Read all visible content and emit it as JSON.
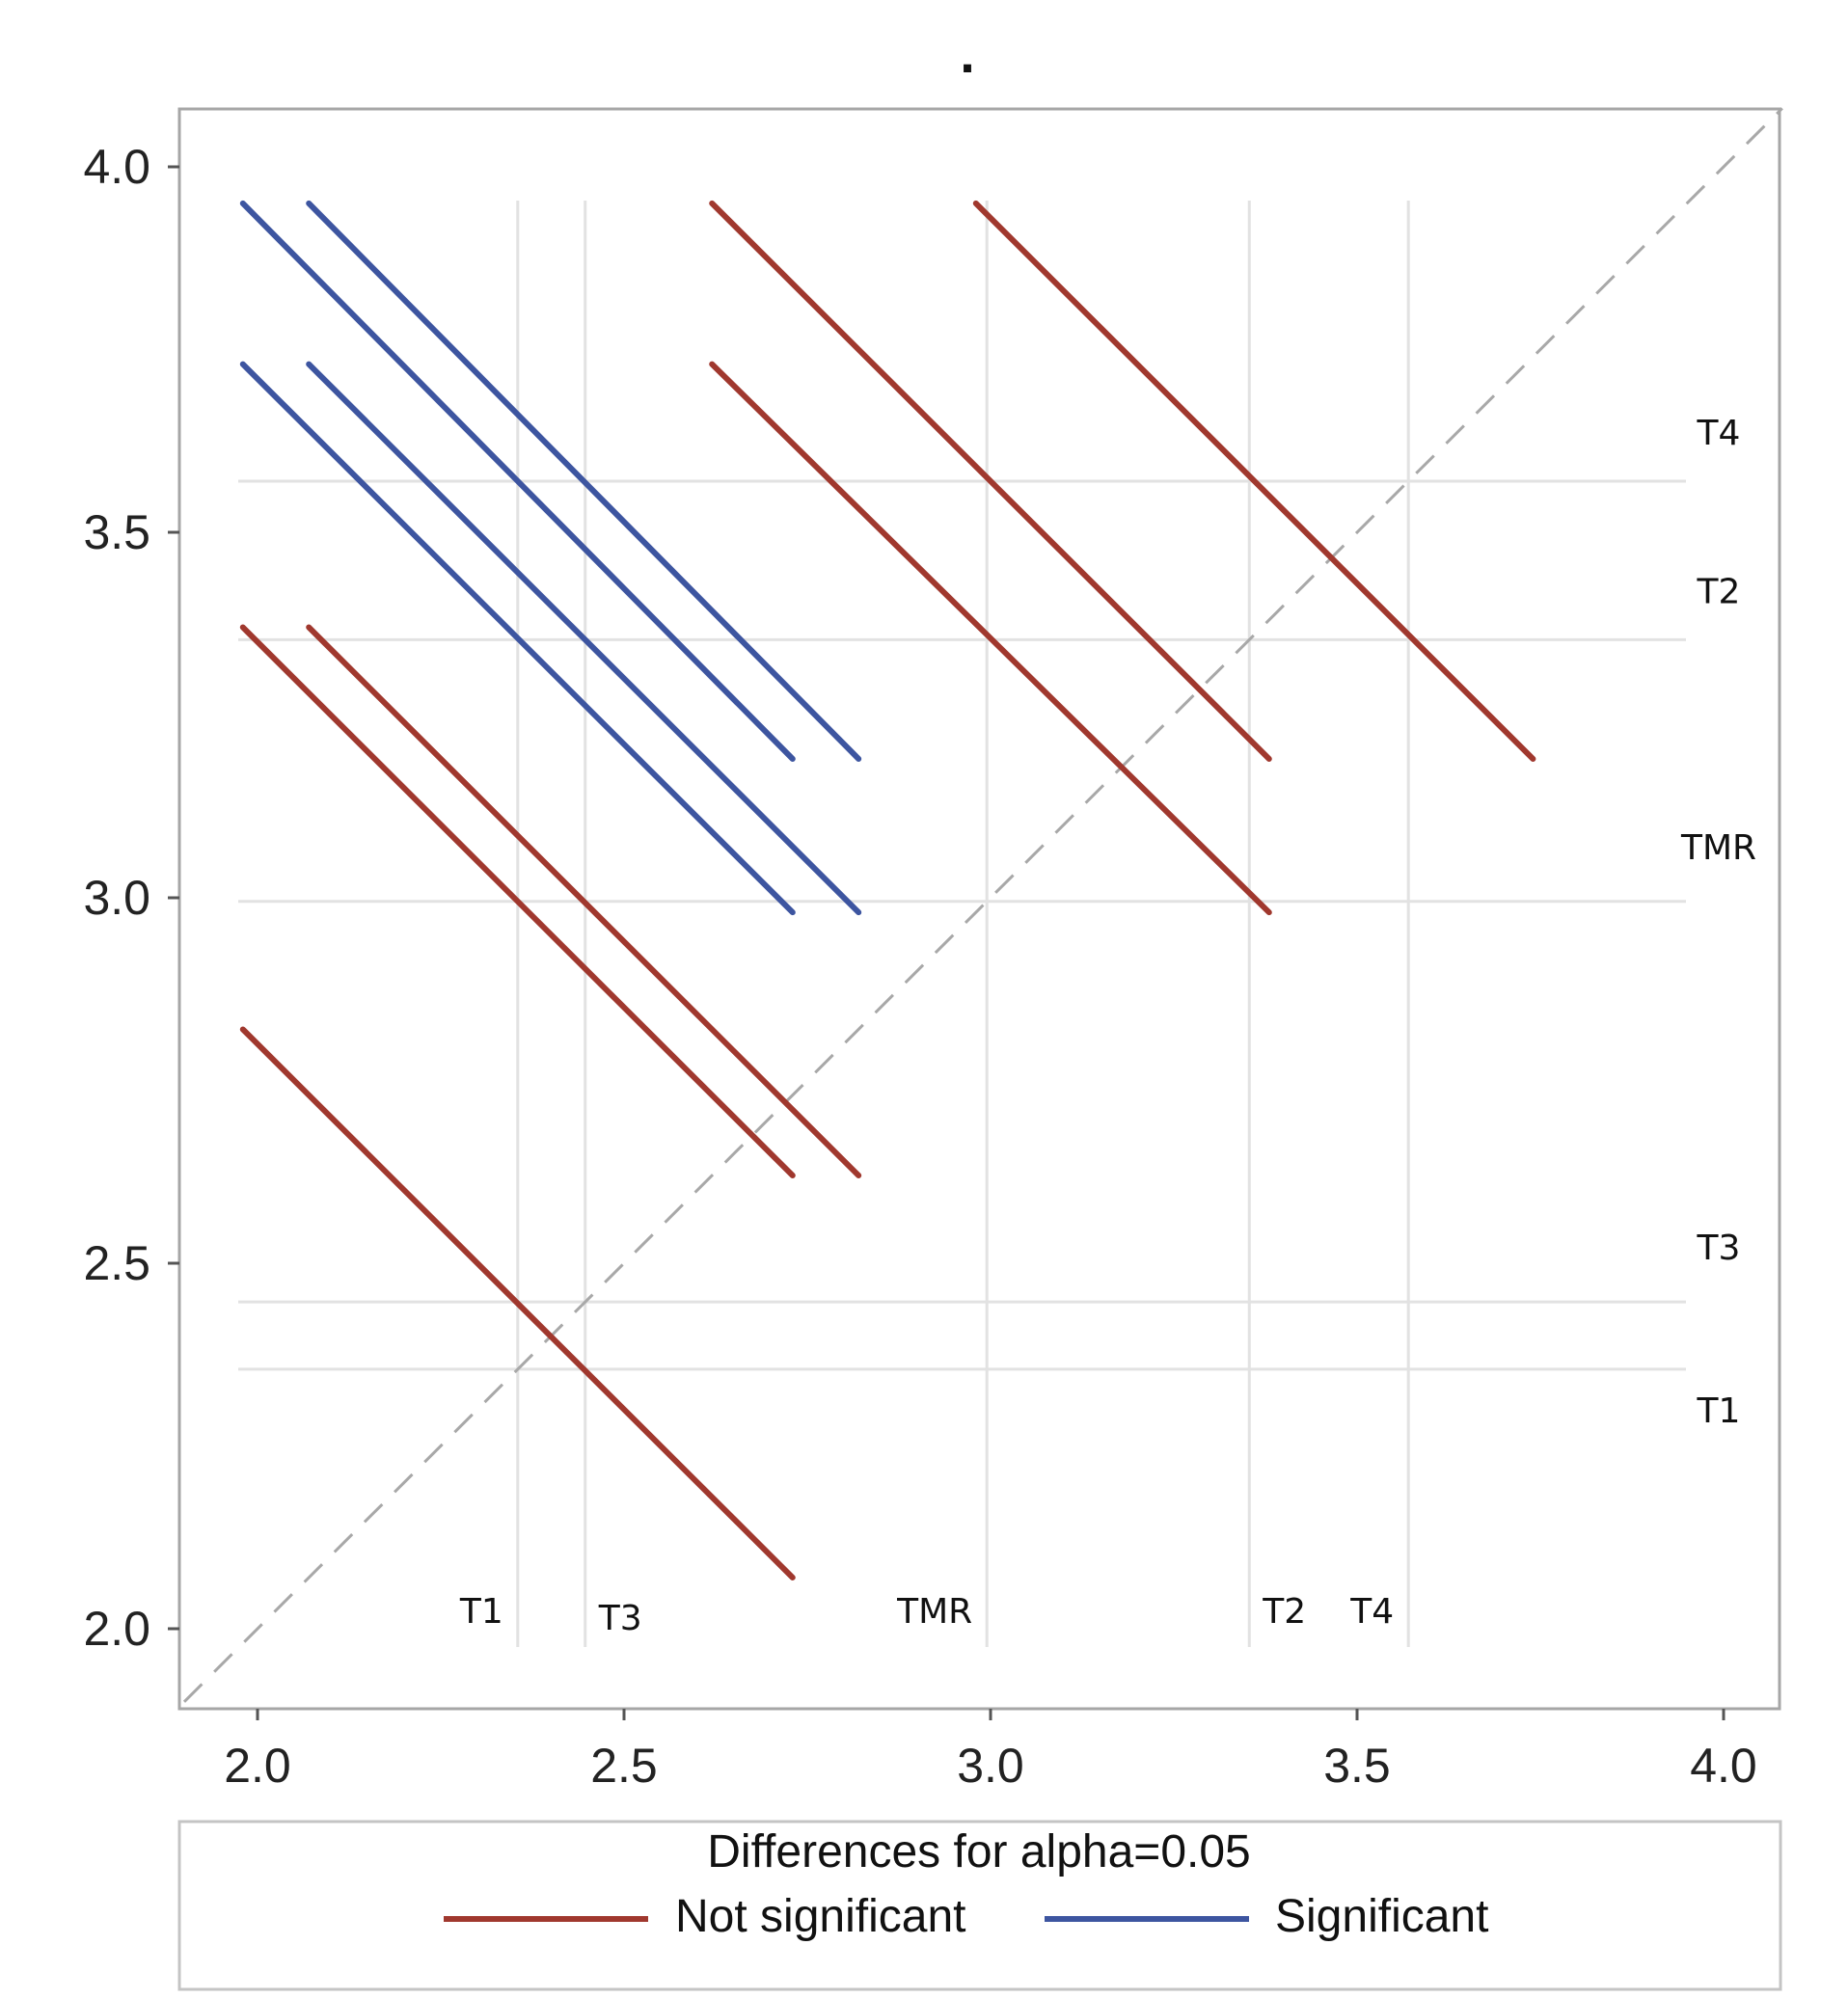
{
  "chart_data": {
    "type": "diffogram",
    "title": ".",
    "xlim": [
      1.9,
      4.08
    ],
    "ylim": [
      1.9,
      4.08
    ],
    "x_ticks": [
      2.0,
      2.5,
      3.0,
      3.5,
      4.0
    ],
    "y_ticks": [
      2.0,
      2.5,
      3.0,
      3.5,
      4.0
    ],
    "x_tick_labels": [
      "2.0",
      "2.5",
      "3.0",
      "3.5",
      "4.0"
    ],
    "y_tick_labels": [
      "2.0",
      "2.5",
      "3.0",
      "3.5",
      "4.0"
    ],
    "treatments": [
      {
        "name": "T1",
        "mean": 2.355
      },
      {
        "name": "T3",
        "mean": 2.447
      },
      {
        "name": "TMR",
        "mean": 2.995
      },
      {
        "name": "T2",
        "mean": 3.353
      },
      {
        "name": "T4",
        "mean": 3.57
      }
    ],
    "diagonal_range": [
      1.9,
      4.08
    ],
    "segments": [
      {
        "x1": 2.07,
        "y1": 3.95,
        "x2": 2.82,
        "y2": 3.19,
        "significant": true
      },
      {
        "x1": 1.98,
        "y1": 3.95,
        "x2": 2.73,
        "y2": 3.19,
        "significant": true
      },
      {
        "x1": 2.07,
        "y1": 3.73,
        "x2": 2.82,
        "y2": 2.98,
        "significant": true
      },
      {
        "x1": 1.98,
        "y1": 3.73,
        "x2": 2.73,
        "y2": 2.98,
        "significant": true
      },
      {
        "x1": 2.07,
        "y1": 3.37,
        "x2": 2.82,
        "y2": 2.62,
        "significant": false
      },
      {
        "x1": 1.98,
        "y1": 3.37,
        "x2": 2.73,
        "y2": 2.62,
        "significant": false
      },
      {
        "x1": 1.98,
        "y1": 2.82,
        "x2": 2.73,
        "y2": 2.07,
        "significant": false
      },
      {
        "x1": 2.62,
        "y1": 3.95,
        "x2": 3.38,
        "y2": 3.19,
        "significant": false
      },
      {
        "x1": 2.62,
        "y1": 3.73,
        "x2": 3.38,
        "y2": 2.98,
        "significant": false
      },
      {
        "x1": 2.98,
        "y1": 3.95,
        "x2": 3.74,
        "y2": 3.19,
        "significant": false
      }
    ],
    "legend": {
      "title": "Differences for alpha=0.05",
      "entries": [
        {
          "label": "Not significant",
          "color": "#a0382e"
        },
        {
          "label": "Significant",
          "color": "#3d55a0"
        }
      ]
    }
  },
  "colors": {
    "not_significant": "#a0382e",
    "significant": "#3d55a0",
    "grid": "#e2e2e2",
    "frame": "#a6a6a6",
    "diagonal": "#a8a8a8"
  }
}
